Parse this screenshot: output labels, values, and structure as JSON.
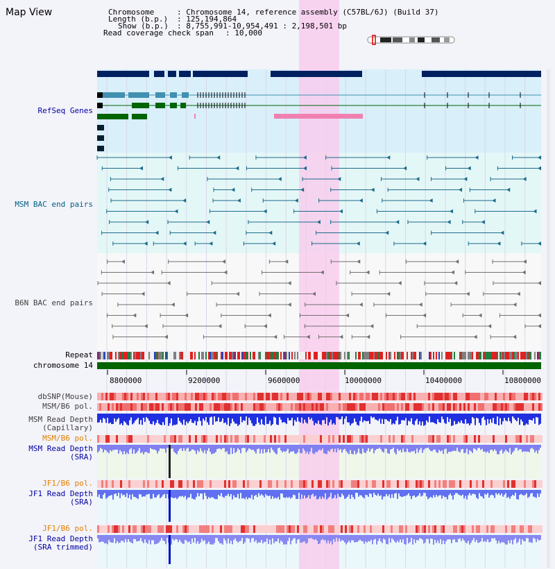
{
  "app": {
    "title": "Map View"
  },
  "header": {
    "chromosome_label": "Chromosome",
    "chromosome_value": ": Chromosome 14, reference assembly (C57BL/6J) (Build 37)",
    "length_label": "Length (b.p.)",
    "length_value": ": 125,194,864",
    "show_label": "Show (b.p.)",
    "show_value": ": 8,755,991-10,954,491 : 2,198,501 bp",
    "coverage_label": "Read coverage check span",
    "coverage_value": ": 10,000"
  },
  "tracks": {
    "refseq": "RefSeq Genes",
    "msm_bac": "MSM BAC end pairs",
    "b6n_bac": "B6N BAC end pairs",
    "repeat": "Repeat",
    "chromosome": "chromosome 14",
    "dbsnp": "dbSNP(Mouse)",
    "msm_b6_pol_1": "MSM/B6 pol.",
    "msm_read_depth_cap_1": "MSM Read Depth",
    "msm_read_depth_cap_2": "(Capillary)",
    "msm_b6_pol_2": "MSM/B6 pol.",
    "msm_read_depth_sra_1": "MSM Read Depth",
    "msm_read_depth_sra_2": "(SRA)",
    "jf1_b6_pol_1": "JF1/B6 pol.",
    "jf1_read_depth_sra_1": "JF1 Read Depth",
    "jf1_read_depth_sra_2": "(SRA)",
    "jf1_b6_pol_2": "JF1/B6 pol.",
    "jf1_read_depth_trim_1": "JF1 Read Depth",
    "jf1_read_depth_trim_2": "(SRA trimmed)"
  },
  "axis": {
    "ticks": [
      "8800000",
      "9200000",
      "9600000",
      "10000000",
      "10400000",
      "10800000"
    ]
  },
  "colors": {
    "refseq_label": "#0000a0",
    "msm_label": "#006080",
    "b6n_label": "#404040",
    "orange_label": "#e08000",
    "navy_label": "#0000a0",
    "highlight": "#f9c8ec",
    "chromosome_bar": "#006400",
    "gene_dark": "#002060",
    "gene_teal": "#4090b0",
    "gene_green": "#006400"
  }
}
